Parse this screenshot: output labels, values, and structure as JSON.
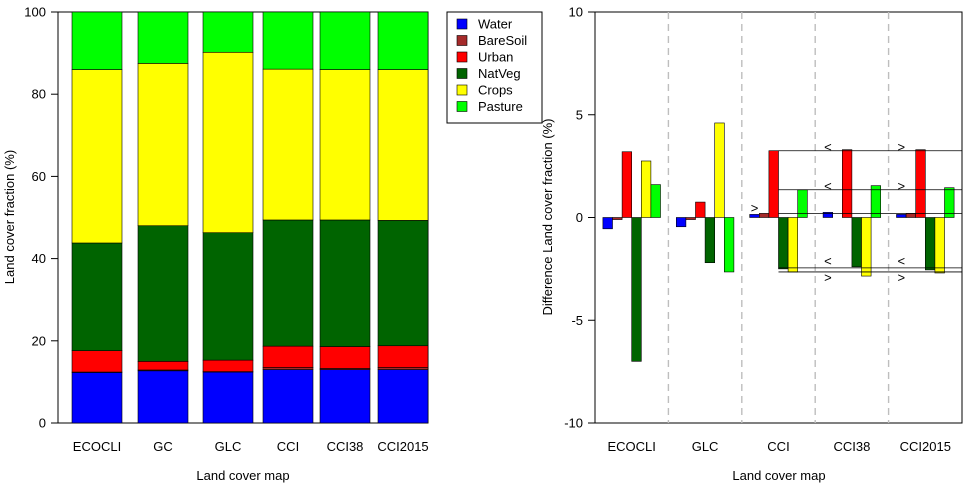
{
  "colors": {
    "Water": "#0000ff",
    "BareSoil": "#a52a2a",
    "Urban": "#ff0000",
    "NatVeg": "#006400",
    "Crops": "#ffff00",
    "Pasture": "#00ff00",
    "axis": "#000000",
    "grid_dashed": "#bebebe",
    "annotation": "#000000"
  },
  "chart_data": [
    {
      "type": "bar",
      "stacked": true,
      "xlabel": "Land cover map",
      "ylabel": "Land cover fraction (%)",
      "ylim": [
        0,
        100
      ],
      "yticks": [
        0,
        20,
        40,
        60,
        80,
        100
      ],
      "legend": {
        "placement": "right",
        "entries": [
          "Water",
          "BareSoil",
          "Urban",
          "NatVeg",
          "Crops",
          "Pasture"
        ]
      },
      "categories": [
        "ECOCLI",
        "GC",
        "GLC",
        "CCI",
        "CCI38",
        "CCI2015"
      ],
      "series": [
        {
          "name": "Water",
          "values": [
            12.3,
            12.7,
            12.4,
            13.0,
            13.0,
            13.0
          ]
        },
        {
          "name": "BareSoil",
          "values": [
            0.1,
            0.2,
            0.1,
            0.5,
            0.3,
            0.5
          ]
        },
        {
          "name": "Urban",
          "values": [
            5.2,
            2.1,
            2.8,
            5.2,
            5.3,
            5.3
          ]
        },
        {
          "name": "NatVeg",
          "values": [
            26.2,
            33.0,
            31.0,
            30.7,
            30.8,
            30.5
          ]
        },
        {
          "name": "Crops",
          "values": [
            42.2,
            39.5,
            43.9,
            36.7,
            36.6,
            36.7
          ]
        },
        {
          "name": "Pasture",
          "values": [
            14.0,
            12.5,
            9.8,
            13.9,
            14.0,
            14.0
          ]
        }
      ]
    },
    {
      "type": "bar",
      "grouped": true,
      "xlabel": "Land cover map",
      "ylabel": "Difference Land cover fraction (%)",
      "ylim": [
        -10,
        10
      ],
      "yticks": [
        -10,
        -5,
        0,
        5,
        10
      ],
      "categories": [
        "ECOCLI",
        "GLC",
        "CCI",
        "CCI38",
        "CCI2015"
      ],
      "series": [
        {
          "name": "Water",
          "values": [
            -0.55,
            -0.45,
            0.15,
            0.25,
            0.15
          ]
        },
        {
          "name": "BareSoil",
          "values": [
            -0.1,
            -0.1,
            0.2,
            0.0,
            0.2
          ]
        },
        {
          "name": "Urban",
          "values": [
            3.2,
            0.75,
            3.25,
            3.3,
            3.3
          ]
        },
        {
          "name": "NatVeg",
          "values": [
            -7.0,
            -2.2,
            -2.5,
            -2.4,
            -2.55
          ]
        },
        {
          "name": "Crops",
          "values": [
            2.75,
            4.6,
            -2.65,
            -2.85,
            -2.7
          ]
        },
        {
          "name": "Pasture",
          "values": [
            1.6,
            -2.65,
            1.35,
            1.55,
            1.45
          ]
        }
      ],
      "reference_lines": [
        3.25,
        1.35,
        0.2,
        -2.45,
        -2.65
      ],
      "annotations": [
        {
          "text": "<",
          "near": "CCI38 Water",
          "y": 3.4
        },
        {
          "text": ">",
          "near": "CCI2015 Water",
          "y": 3.4
        },
        {
          "text": "<",
          "near": "CCI38 Water",
          "y": 1.5
        },
        {
          "text": ">",
          "near": "CCI2015 Water",
          "y": 1.5
        },
        {
          "text": ">",
          "near": "CCI Water",
          "y": 0.45
        },
        {
          "text": "<",
          "near": "CCI38 Water",
          "y": -2.15
        },
        {
          "text": "<",
          "near": "CCI2015 Water",
          "y": -2.15
        },
        {
          "text": ">",
          "near": "CCI38 Water",
          "y": -2.95
        },
        {
          "text": ">",
          "near": "CCI2015 Water",
          "y": -2.95
        }
      ]
    }
  ]
}
